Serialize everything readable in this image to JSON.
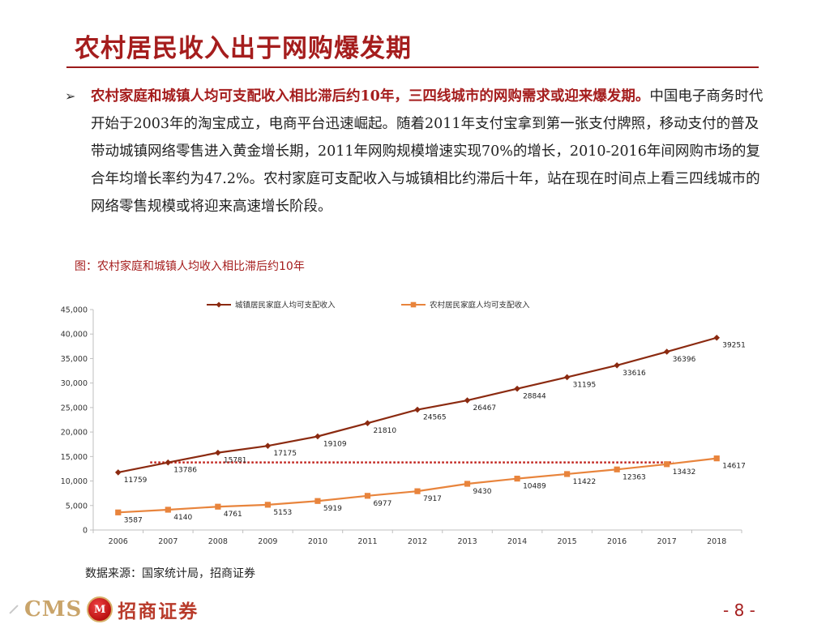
{
  "slide": {
    "title": "农村居民收入出于网购爆发期",
    "bullet": {
      "lead": "农村家庭和城镇人均可支配收入相比滞后约10年，三四线城市的网购需求或迎来爆发期。",
      "body": "中国电子商务时代开始于2003年的淘宝成立，电商平台迅速崛起。随着2011年支付宝拿到第一张支付牌照，移动支付的普及带动城镇网络零售进入黄金增长期，2011年网购规模增速实现70%的增长，2010-2016年间网购市场的复合年均增长率约为47.2%。农村家庭可支配收入与城镇相比约滞后十年，站在现在时间点上看三四线城市的网络零售规模或将迎来高速增长阶段。"
    },
    "figure_caption": "图：农村家庭和城镇人均收入相比滞后约10年",
    "source": "数据来源：国家统计局，招商证券",
    "logo": {
      "latin": "CMS",
      "mark": "M",
      "chinese": "招商证券"
    },
    "page_number": "- 8 -"
  },
  "chart_data": {
    "type": "line",
    "x": [
      2006,
      2007,
      2008,
      2009,
      2010,
      2011,
      2012,
      2013,
      2014,
      2015,
      2016,
      2017,
      2018
    ],
    "ylim": [
      0,
      45000
    ],
    "yticks": [
      0,
      5000,
      10000,
      15000,
      20000,
      25000,
      30000,
      35000,
      40000,
      45000
    ],
    "ytick_labels": [
      "0",
      "5,000",
      "10,000",
      "15,000",
      "20,000",
      "25,000",
      "30,000",
      "35,000",
      "40,000",
      "45,000"
    ],
    "legend_position": "top",
    "grid": false,
    "series": [
      {
        "name": "城镇居民家庭人均可支配收入",
        "color": "#8b2a10",
        "marker": "diamond",
        "values": [
          11759,
          13786,
          15781,
          17175,
          19109,
          21810,
          24565,
          26467,
          28844,
          31195,
          33616,
          36396,
          39251
        ],
        "labels": [
          "11759",
          "13786",
          "15781",
          "17175",
          "19109",
          "21810",
          "24565",
          "26467",
          "28844",
          "31195",
          "33616",
          "36396",
          "39251"
        ]
      },
      {
        "name": "农村居民家庭人均可支配收入",
        "color": "#e8843c",
        "marker": "square",
        "values": [
          3587,
          4140,
          4761,
          5153,
          5919,
          6977,
          7917,
          9430,
          10489,
          11422,
          12363,
          13432,
          14617
        ],
        "labels": [
          "3587",
          "4140",
          "4761",
          "5153",
          "5919",
          "6977",
          "7917",
          "9430",
          "10489",
          "11422",
          "12363",
          "13432",
          "14617"
        ]
      }
    ],
    "annotation": {
      "type": "horizontal-dotted-line",
      "value": 13786,
      "from_x": 2007,
      "to_x": 2017,
      "color": "#c0201a"
    }
  }
}
